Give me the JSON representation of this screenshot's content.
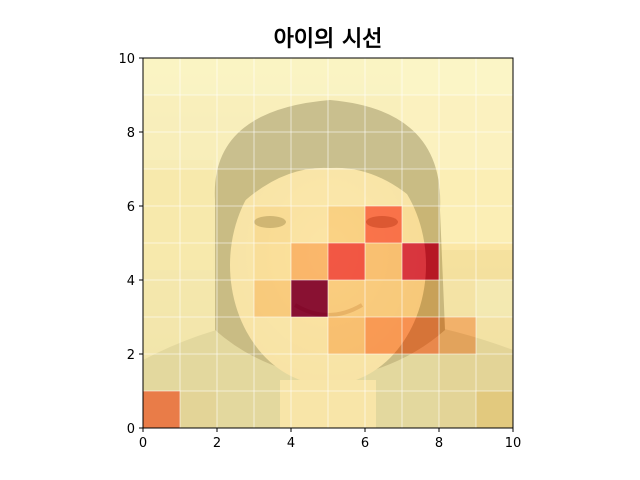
{
  "chart_data": {
    "type": "heatmap",
    "title": "아이의 시선",
    "xlabel": "",
    "ylabel": "",
    "xlim": [
      0,
      10
    ],
    "ylim": [
      0,
      10
    ],
    "xticks": [
      "0",
      "2",
      "4",
      "6",
      "8",
      "10"
    ],
    "yticks": [
      "0",
      "2",
      "4",
      "6",
      "8",
      "10"
    ],
    "grid": true,
    "colormap": "YlOrRd",
    "value_range": [
      0,
      1
    ],
    "rows_bottom_to_top": [
      [
        0.55,
        0.15,
        0.12,
        0.12,
        0.12,
        0.12,
        0.12,
        0.12,
        0.15,
        0.25
      ],
      [
        0.12,
        0.12,
        0.12,
        0.12,
        0.12,
        0.12,
        0.12,
        0.12,
        0.15,
        0.15
      ],
      [
        0.12,
        0.12,
        0.12,
        0.12,
        0.15,
        0.35,
        0.5,
        0.52,
        0.42,
        0.15
      ],
      [
        0.12,
        0.12,
        0.12,
        0.3,
        1.0,
        0.3,
        0.3,
        0.3,
        0.15,
        0.1
      ],
      [
        0.12,
        0.12,
        0.12,
        0.18,
        0.4,
        0.68,
        0.35,
        0.8,
        0.18,
        0.18
      ],
      [
        0.12,
        0.12,
        0.12,
        0.2,
        0.15,
        0.28,
        0.6,
        0.18,
        0.12,
        0.12
      ],
      [
        0.12,
        0.12,
        0.12,
        0.12,
        0.12,
        0.12,
        0.12,
        0.12,
        0.12,
        0.12
      ],
      [
        0.08,
        0.08,
        0.08,
        0.08,
        0.08,
        0.08,
        0.08,
        0.08,
        0.08,
        0.08
      ],
      [
        0.08,
        0.08,
        0.08,
        0.08,
        0.08,
        0.08,
        0.08,
        0.08,
        0.08,
        0.08
      ],
      [
        0.05,
        0.05,
        0.05,
        0.05,
        0.05,
        0.05,
        0.05,
        0.05,
        0.05,
        0.05
      ]
    ],
    "background_photo": "young-person-face"
  }
}
